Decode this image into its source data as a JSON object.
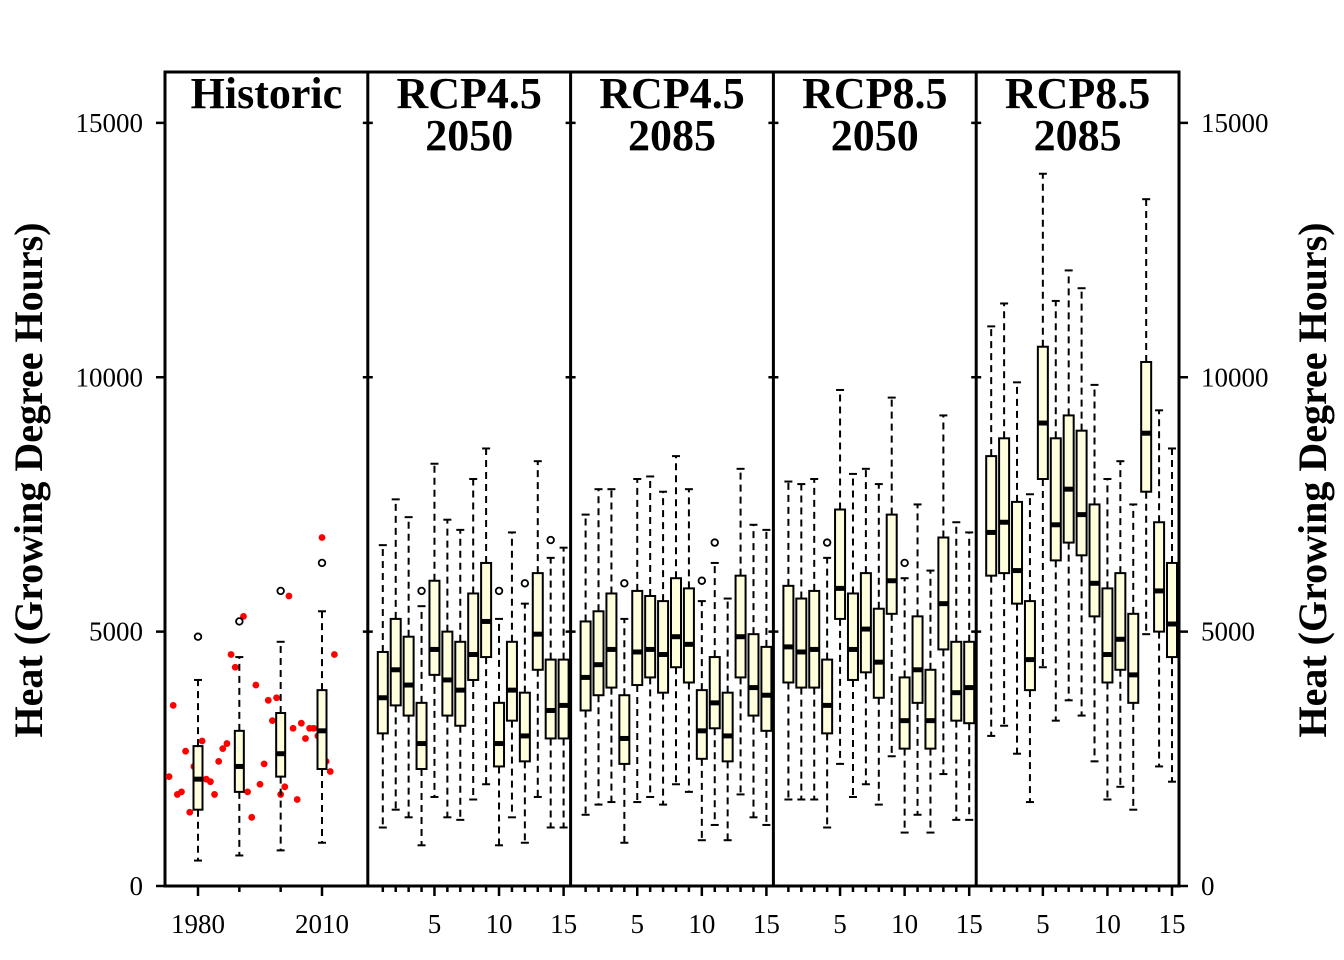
{
  "chart_data": {
    "type": "box",
    "ylabel": "Heat (Growing Degree Hours)",
    "ylim": [
      0,
      16000
    ],
    "yticks": [
      0,
      5000,
      10000,
      15000
    ],
    "colors": {
      "box_fill": "#ffffdd",
      "observed_points": "#ff0000",
      "axis": "#000000"
    },
    "panels": [
      {
        "title_lines": [
          "Historic"
        ],
        "x_tick_labels": [
          "1980",
          "2010"
        ],
        "boxes": [
          {
            "label": "1980",
            "whisker_low": 500,
            "q1": 1500,
            "median": 2100,
            "q3": 2750,
            "whisker_high": 4050,
            "outliers": [
              4900
            ]
          },
          {
            "label": "",
            "whisker_low": 600,
            "q1": 1850,
            "median": 2350,
            "q3": 3050,
            "whisker_high": 4500,
            "outliers": [
              5200
            ]
          },
          {
            "label": "",
            "whisker_low": 700,
            "q1": 2150,
            "median": 2600,
            "q3": 3400,
            "whisker_high": 4800,
            "outliers": [
              5800
            ]
          },
          {
            "label": "2010",
            "whisker_low": 850,
            "q1": 2300,
            "median": 3050,
            "q3": 3850,
            "whisker_high": 5400,
            "outliers": [
              6350
            ]
          }
        ],
        "observed_points": [
          2150,
          3550,
          1800,
          1850,
          2650,
          1450,
          2350,
          2050,
          2850,
          2100,
          2050,
          1800,
          2450,
          2700,
          2800,
          4550,
          4300,
          1950,
          5300,
          1850,
          1350,
          3950,
          2000,
          2400,
          3650,
          3250,
          3700,
          1800,
          1950,
          5700,
          3100,
          1700,
          3200,
          2900,
          3100,
          3100,
          2950,
          6850,
          2450,
          2250,
          4550
        ]
      },
      {
        "title_lines": [
          "RCP4.5",
          "2050"
        ],
        "x_tick_labels": [
          "5",
          "10",
          "15"
        ],
        "boxes": [
          {
            "label": "",
            "whisker_low": 1150,
            "q1": 3000,
            "median": 3700,
            "q3": 4600,
            "whisker_high": 6700,
            "outliers": []
          },
          {
            "label": "",
            "whisker_low": 1500,
            "q1": 3550,
            "median": 4250,
            "q3": 5250,
            "whisker_high": 7600,
            "outliers": []
          },
          {
            "label": "",
            "whisker_low": 1350,
            "q1": 3350,
            "median": 3950,
            "q3": 4900,
            "whisker_high": 7250,
            "outliers": []
          },
          {
            "label": "",
            "whisker_low": 800,
            "q1": 2300,
            "median": 2800,
            "q3": 3600,
            "whisker_high": 5500,
            "outliers": [
              5800
            ]
          },
          {
            "label": "5",
            "whisker_low": 1750,
            "q1": 4150,
            "median": 4650,
            "q3": 6000,
            "whisker_high": 8300,
            "outliers": []
          },
          {
            "label": "",
            "whisker_low": 1350,
            "q1": 3350,
            "median": 4050,
            "q3": 5000,
            "whisker_high": 7200,
            "outliers": []
          },
          {
            "label": "",
            "whisker_low": 1300,
            "q1": 3150,
            "median": 3850,
            "q3": 4800,
            "whisker_high": 7000,
            "outliers": []
          },
          {
            "label": "",
            "whisker_low": 1700,
            "q1": 4050,
            "median": 4550,
            "q3": 5750,
            "whisker_high": 8000,
            "outliers": []
          },
          {
            "label": "",
            "whisker_low": 2000,
            "q1": 4500,
            "median": 5200,
            "q3": 6350,
            "whisker_high": 8600,
            "outliers": []
          },
          {
            "label": "10",
            "whisker_low": 800,
            "q1": 2350,
            "median": 2800,
            "q3": 3600,
            "whisker_high": 5250,
            "outliers": [
              5800
            ]
          },
          {
            "label": "",
            "whisker_low": 1350,
            "q1": 3250,
            "median": 3850,
            "q3": 4800,
            "whisker_high": 6950,
            "outliers": []
          },
          {
            "label": "",
            "whisker_low": 850,
            "q1": 2450,
            "median": 2950,
            "q3": 3800,
            "whisker_high": 5550,
            "outliers": [
              5950
            ]
          },
          {
            "label": "",
            "whisker_low": 1750,
            "q1": 4250,
            "median": 4950,
            "q3": 6150,
            "whisker_high": 8350,
            "outliers": []
          },
          {
            "label": "",
            "whisker_low": 1150,
            "q1": 2900,
            "median": 3450,
            "q3": 4450,
            "whisker_high": 6450,
            "outliers": [
              6800
            ]
          },
          {
            "label": "15",
            "whisker_low": 1150,
            "q1": 2900,
            "median": 3550,
            "q3": 4450,
            "whisker_high": 6650,
            "outliers": []
          }
        ]
      },
      {
        "title_lines": [
          "RCP4.5",
          "2085"
        ],
        "x_tick_labels": [
          "5",
          "10",
          "15"
        ],
        "boxes": [
          {
            "label": "",
            "whisker_low": 1400,
            "q1": 3450,
            "median": 4100,
            "q3": 5200,
            "whisker_high": 7300,
            "outliers": []
          },
          {
            "label": "",
            "whisker_low": 1600,
            "q1": 3750,
            "median": 4350,
            "q3": 5400,
            "whisker_high": 7800,
            "outliers": []
          },
          {
            "label": "",
            "whisker_low": 1650,
            "q1": 3900,
            "median": 4650,
            "q3": 5750,
            "whisker_high": 7800,
            "outliers": []
          },
          {
            "label": "",
            "whisker_low": 850,
            "q1": 2400,
            "median": 2900,
            "q3": 3750,
            "whisker_high": 5250,
            "outliers": [
              5950
            ]
          },
          {
            "label": "5",
            "whisker_low": 1650,
            "q1": 3950,
            "median": 4600,
            "q3": 5800,
            "whisker_high": 8000,
            "outliers": []
          },
          {
            "label": "",
            "whisker_low": 1750,
            "q1": 4100,
            "median": 4650,
            "q3": 5700,
            "whisker_high": 8050,
            "outliers": []
          },
          {
            "label": "",
            "whisker_low": 1600,
            "q1": 3800,
            "median": 4550,
            "q3": 5600,
            "whisker_high": 7750,
            "outliers": []
          },
          {
            "label": "",
            "whisker_low": 2000,
            "q1": 4300,
            "median": 4900,
            "q3": 6050,
            "whisker_high": 8450,
            "outliers": []
          },
          {
            "label": "",
            "whisker_low": 1850,
            "q1": 4000,
            "median": 4750,
            "q3": 5850,
            "whisker_high": 7800,
            "outliers": []
          },
          {
            "label": "10",
            "whisker_low": 900,
            "q1": 2500,
            "median": 3050,
            "q3": 3850,
            "whisker_high": 5600,
            "outliers": [
              6000
            ]
          },
          {
            "label": "",
            "whisker_low": 1200,
            "q1": 3100,
            "median": 3600,
            "q3": 4500,
            "whisker_high": 6350,
            "outliers": [
              6750
            ]
          },
          {
            "label": "",
            "whisker_low": 900,
            "q1": 2450,
            "median": 2950,
            "q3": 3800,
            "whisker_high": 5650,
            "outliers": []
          },
          {
            "label": "",
            "whisker_low": 1800,
            "q1": 4100,
            "median": 4900,
            "q3": 6100,
            "whisker_high": 8200,
            "outliers": []
          },
          {
            "label": "",
            "whisker_low": 1350,
            "q1": 3350,
            "median": 3900,
            "q3": 4950,
            "whisker_high": 7100,
            "outliers": []
          },
          {
            "label": "15",
            "whisker_low": 1200,
            "q1": 3050,
            "median": 3750,
            "q3": 4700,
            "whisker_high": 7000,
            "outliers": []
          }
        ]
      },
      {
        "title_lines": [
          "RCP8.5",
          "2050"
        ],
        "x_tick_labels": [
          "5",
          "10",
          "15"
        ],
        "boxes": [
          {
            "label": "",
            "whisker_low": 1700,
            "q1": 4000,
            "median": 4700,
            "q3": 5900,
            "whisker_high": 7950,
            "outliers": []
          },
          {
            "label": "",
            "whisker_low": 1700,
            "q1": 3900,
            "median": 4600,
            "q3": 5650,
            "whisker_high": 7900,
            "outliers": []
          },
          {
            "label": "",
            "whisker_low": 1700,
            "q1": 3900,
            "median": 4650,
            "q3": 5800,
            "whisker_high": 8000,
            "outliers": []
          },
          {
            "label": "",
            "whisker_low": 1150,
            "q1": 3000,
            "median": 3550,
            "q3": 4450,
            "whisker_high": 6450,
            "outliers": [
              6750
            ]
          },
          {
            "label": "5",
            "whisker_low": 2400,
            "q1": 5250,
            "median": 5850,
            "q3": 7400,
            "whisker_high": 9750,
            "outliers": []
          },
          {
            "label": "",
            "whisker_low": 1750,
            "q1": 4050,
            "median": 4650,
            "q3": 5750,
            "whisker_high": 8100,
            "outliers": []
          },
          {
            "label": "",
            "whisker_low": 2000,
            "q1": 4200,
            "median": 5050,
            "q3": 6150,
            "whisker_high": 8200,
            "outliers": []
          },
          {
            "label": "",
            "whisker_low": 1600,
            "q1": 3700,
            "median": 4400,
            "q3": 5450,
            "whisker_high": 7900,
            "outliers": []
          },
          {
            "label": "",
            "whisker_low": 2550,
            "q1": 5350,
            "median": 6000,
            "q3": 7300,
            "whisker_high": 9600,
            "outliers": []
          },
          {
            "label": "10",
            "whisker_low": 1050,
            "q1": 2700,
            "median": 3250,
            "q3": 4100,
            "whisker_high": 6050,
            "outliers": [
              6350
            ]
          },
          {
            "label": "",
            "whisker_low": 1400,
            "q1": 3600,
            "median": 4250,
            "q3": 5300,
            "whisker_high": 7500,
            "outliers": []
          },
          {
            "label": "",
            "whisker_low": 1050,
            "q1": 2700,
            "median": 3250,
            "q3": 4250,
            "whisker_high": 6200,
            "outliers": []
          },
          {
            "label": "",
            "whisker_low": 2200,
            "q1": 4650,
            "median": 5550,
            "q3": 6850,
            "whisker_high": 9250,
            "outliers": []
          },
          {
            "label": "",
            "whisker_low": 1300,
            "q1": 3250,
            "median": 3800,
            "q3": 4800,
            "whisker_high": 7150,
            "outliers": []
          },
          {
            "label": "15",
            "whisker_low": 1300,
            "q1": 3200,
            "median": 3900,
            "q3": 4800,
            "whisker_high": 6950,
            "outliers": []
          }
        ]
      },
      {
        "title_lines": [
          "RCP8.5",
          "2085"
        ],
        "x_tick_labels": [
          "5",
          "10",
          "15"
        ],
        "boxes": [
          {
            "label": "",
            "whisker_low": 2950,
            "q1": 6100,
            "median": 6950,
            "q3": 8450,
            "whisker_high": 11000,
            "outliers": []
          },
          {
            "label": "",
            "whisker_low": 3150,
            "q1": 6150,
            "median": 7150,
            "q3": 8800,
            "whisker_high": 11450,
            "outliers": []
          },
          {
            "label": "",
            "whisker_low": 2600,
            "q1": 5550,
            "median": 6200,
            "q3": 7550,
            "whisker_high": 9900,
            "outliers": []
          },
          {
            "label": "",
            "whisker_low": 1650,
            "q1": 3850,
            "median": 4450,
            "q3": 5600,
            "whisker_high": 7700,
            "outliers": []
          },
          {
            "label": "5",
            "whisker_low": 4300,
            "q1": 8000,
            "median": 9100,
            "q3": 10600,
            "whisker_high": 14000,
            "outliers": []
          },
          {
            "label": "",
            "whisker_low": 3250,
            "q1": 6400,
            "median": 7100,
            "q3": 8800,
            "whisker_high": 11500,
            "outliers": []
          },
          {
            "label": "",
            "whisker_low": 3650,
            "q1": 6750,
            "median": 7800,
            "q3": 9250,
            "whisker_high": 12100,
            "outliers": []
          },
          {
            "label": "",
            "whisker_low": 3350,
            "q1": 6500,
            "median": 7300,
            "q3": 8950,
            "whisker_high": 11750,
            "outliers": []
          },
          {
            "label": "",
            "whisker_low": 2450,
            "q1": 5300,
            "median": 5950,
            "q3": 7500,
            "whisker_high": 9850,
            "outliers": []
          },
          {
            "label": "10",
            "whisker_low": 1700,
            "q1": 4000,
            "median": 4550,
            "q3": 5850,
            "whisker_high": 8000,
            "outliers": []
          },
          {
            "label": "",
            "whisker_low": 1950,
            "q1": 4250,
            "median": 4850,
            "q3": 6150,
            "whisker_high": 8350,
            "outliers": []
          },
          {
            "label": "",
            "whisker_low": 1500,
            "q1": 3600,
            "median": 4150,
            "q3": 5350,
            "whisker_high": 7500,
            "outliers": []
          },
          {
            "label": "",
            "whisker_low": 4950,
            "q1": 7750,
            "median": 8900,
            "q3": 10300,
            "whisker_high": 13500,
            "outliers": []
          },
          {
            "label": "",
            "whisker_low": 2350,
            "q1": 5000,
            "median": 5800,
            "q3": 7150,
            "whisker_high": 9350,
            "outliers": []
          },
          {
            "label": "15",
            "whisker_low": 2050,
            "q1": 4500,
            "median": 5150,
            "q3": 6350,
            "whisker_high": 8600,
            "outliers": []
          }
        ]
      }
    ]
  }
}
